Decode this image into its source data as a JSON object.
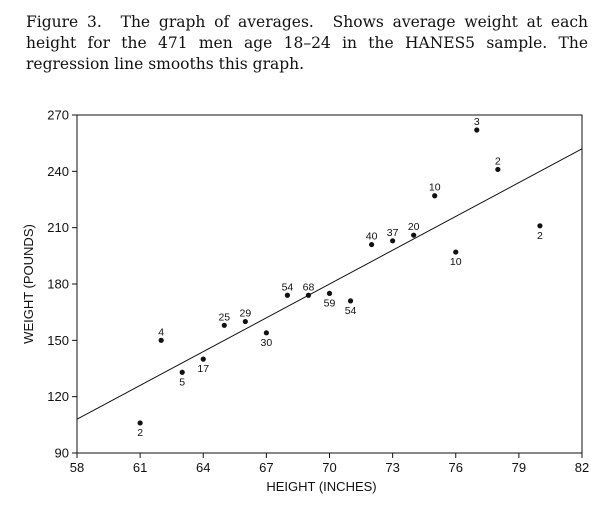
{
  "caption": {
    "label": "Figure 3.",
    "title": "The graph of averages.",
    "text": "Shows average weight at each height for the 471 men age 18–24 in the HANES5 sample. The regression line smooths this graph."
  },
  "chart_data": {
    "type": "scatter",
    "title": "",
    "xlabel": "HEIGHT (INCHES)",
    "ylabel": "WEIGHT (POUNDS)",
    "xlim": [
      58,
      82
    ],
    "ylim": [
      90,
      270
    ],
    "xticks": [
      58,
      61,
      64,
      67,
      70,
      73,
      76,
      79,
      82
    ],
    "yticks": [
      90,
      120,
      150,
      180,
      210,
      240,
      270
    ],
    "grid": false,
    "points": [
      {
        "x": 61,
        "y": 106,
        "label": "2",
        "pos": "below"
      },
      {
        "x": 62,
        "y": 150,
        "label": "4",
        "pos": "above"
      },
      {
        "x": 63,
        "y": 133,
        "label": "5",
        "pos": "below"
      },
      {
        "x": 64,
        "y": 140,
        "label": "17",
        "pos": "below"
      },
      {
        "x": 65,
        "y": 158,
        "label": "25",
        "pos": "above"
      },
      {
        "x": 66,
        "y": 160,
        "label": "29",
        "pos": "above"
      },
      {
        "x": 67,
        "y": 154,
        "label": "30",
        "pos": "below"
      },
      {
        "x": 68,
        "y": 174,
        "label": "54",
        "pos": "above"
      },
      {
        "x": 69,
        "y": 174,
        "label": "68",
        "pos": "above"
      },
      {
        "x": 70,
        "y": 175,
        "label": "59",
        "pos": "below"
      },
      {
        "x": 71,
        "y": 171,
        "label": "54",
        "pos": "below"
      },
      {
        "x": 72,
        "y": 201,
        "label": "40",
        "pos": "above"
      },
      {
        "x": 73,
        "y": 203,
        "label": "37",
        "pos": "above"
      },
      {
        "x": 74,
        "y": 206,
        "label": "20",
        "pos": "above"
      },
      {
        "x": 75,
        "y": 227,
        "label": "10",
        "pos": "above"
      },
      {
        "x": 76,
        "y": 197,
        "label": "10",
        "pos": "below"
      },
      {
        "x": 77,
        "y": 262,
        "label": "3",
        "pos": "above"
      },
      {
        "x": 78,
        "y": 241,
        "label": "2",
        "pos": "above"
      },
      {
        "x": 80,
        "y": 211,
        "label": "2",
        "pos": "below"
      }
    ],
    "regression_line": {
      "x": [
        58,
        82
      ],
      "y": [
        108,
        252
      ]
    }
  }
}
